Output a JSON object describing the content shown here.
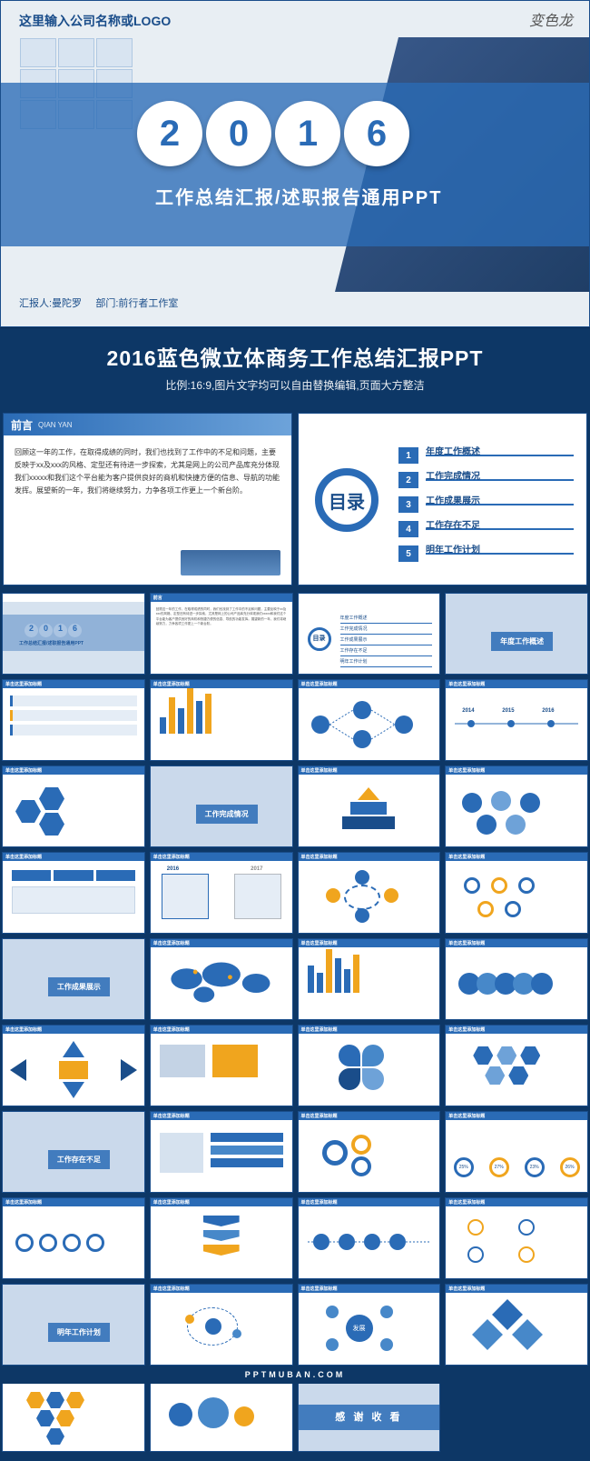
{
  "brand_watermark": "变色龙",
  "hero": {
    "logo_text": "这里输入公司名称或LOGO",
    "year_digits": [
      "2",
      "0",
      "1",
      "6"
    ],
    "subtitle": "工作总结汇报/述职报告通用PPT",
    "reporter_label": "汇报人:",
    "reporter_name": "曼陀罗",
    "dept_label": "部门:",
    "dept_name": "前行者工作室"
  },
  "banner": {
    "title": "2016蓝色微立体商务工作总结汇报PPT",
    "subtitle": "比例:16:9,图片文字均可以自由替换编辑,页面大方整洁"
  },
  "preface": {
    "heading": "前言",
    "heading_pinyin": "QIAN YAN",
    "body": "回顾这一年的工作，在取得成绩的同时，我们也找到了工作中的不足和问题，主要反映于xx及xxx的风格、定型还有待进一步探索，尤其是网上的公司产品库充分体现我们xxxxx和我们这个平台能为客户提供良好的商机和快捷方便的信息、导航的功能发挥。展望新的一年，我们将继续努力，力争各项工作更上一个新台阶。"
  },
  "toc": {
    "heading": "目录",
    "items": [
      {
        "n": "1",
        "label": "年度工作概述"
      },
      {
        "n": "2",
        "label": "工作完成情况"
      },
      {
        "n": "3",
        "label": "工作成果展示"
      },
      {
        "n": "4",
        "label": "工作存在不足"
      },
      {
        "n": "5",
        "label": "明年工作计划"
      }
    ]
  },
  "sections": {
    "s1": "年度工作概述",
    "s2": "工作完成情况",
    "s3": "工作成果展示",
    "s4": "工作存在不足",
    "s5": "明年工作计划",
    "thanks": "感 谢 收 看",
    "develop": "发展"
  },
  "thumb_header": "单击这里添加标题",
  "colors": {
    "primary": "#2a6bb6",
    "dark": "#0d3766",
    "accent": "#f0a51e",
    "gray": "#b4b9bf"
  },
  "charts": {
    "bar1": {
      "values": [
        18,
        40,
        28,
        50,
        36,
        44
      ],
      "colors": [
        "#2a6bb6",
        "#f0a51e",
        "#2a6bb6",
        "#f0a51e",
        "#2a6bb6",
        "#f0a51e"
      ]
    },
    "bar2": {
      "values": [
        30,
        22,
        48,
        38,
        26,
        42
      ],
      "colors": [
        "#2a6bb6",
        "#2a6bb6",
        "#f0a51e",
        "#2a6bb6",
        "#2a6bb6",
        "#f0a51e"
      ]
    },
    "timeline_years": [
      "2014",
      "2015",
      "2016"
    ],
    "percents": [
      "25%",
      "27%",
      "23%",
      "26%"
    ]
  },
  "footer": "PPTMUBAN.COM"
}
